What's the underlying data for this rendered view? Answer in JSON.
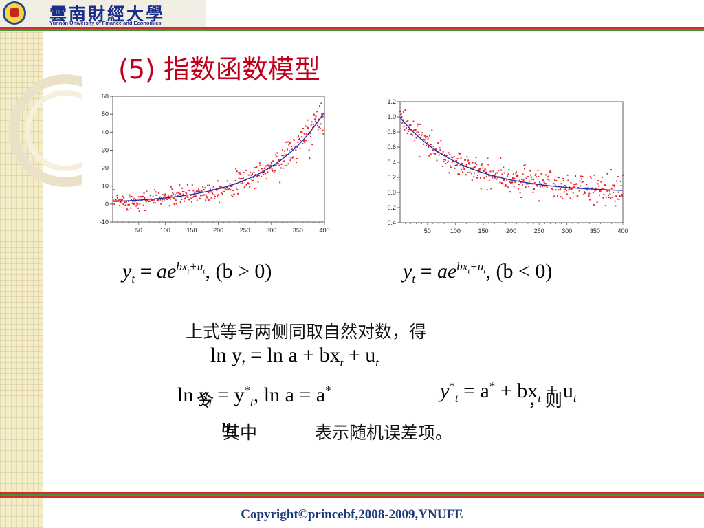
{
  "header": {
    "logo_cn": "雲南財經大學",
    "logo_en": "Yunnan University of Finance and Economics"
  },
  "slide": {
    "title": "(5) 指数函数模型",
    "eq_left": {
      "lhs": "y",
      "lhs_sub": "t",
      "rel": " = ",
      "base": "ae",
      "exp_pre": "bx",
      "exp_sub": "t",
      "exp_post": "+u",
      "exp_sub2": "t",
      "cond": ",  (b > 0)"
    },
    "eq_right": {
      "lhs": "y",
      "lhs_sub": "t",
      "rel": " = ",
      "base": "ae",
      "exp_pre": "bx",
      "exp_sub": "t",
      "exp_post": "+u",
      "exp_sub2": "t",
      "cond": ",  (b < 0)"
    },
    "text_line1": "上式等号两侧同取自然对数，得",
    "eq_ln": {
      "a": "ln y",
      "a_sub": "t",
      "b": " = ln a + bx",
      "b_sub": "t",
      "c": " + u",
      "c_sub": "t"
    },
    "text_let": "令",
    "eq_sub": {
      "a": "ln y",
      "a_sub": "t",
      "b": " = y",
      "b_sup": "*",
      "b_sub": "t",
      "c": ", ln a = a",
      "c_sup": "*"
    },
    "text_then": "，则",
    "eq_result": {
      "a": "y",
      "a_sup": "*",
      "a_sub": "t",
      "b": " = a",
      "b_sup": "*",
      "c": " + bx",
      "c_sub": "t",
      "d": " + u",
      "d_sub": "t"
    },
    "text_where": "其中",
    "text_u": "u",
    "text_u_sub": "t",
    "text_desc": "表示随机误差项。"
  },
  "footer": {
    "copyright": "Copyright©princebf,2008-2009,YNUFE"
  },
  "colors": {
    "title": "#c0001a",
    "points": "#e8202a",
    "curve": "#1a2fb0",
    "brand": "#1b2e8c"
  },
  "chart_data": [
    {
      "type": "scatter",
      "x_ticks": [
        50,
        100,
        150,
        200,
        250,
        300,
        350,
        400
      ],
      "y_ticks": [
        -10,
        0,
        10,
        20,
        30,
        40,
        50,
        60
      ],
      "xlim": [
        1,
        400
      ],
      "ylim": [
        -10,
        60
      ],
      "series": [
        {
          "kind": "points",
          "model": "y = 1.4 e^(0.009x) + noise",
          "n": 400
        },
        {
          "kind": "fitted-line",
          "a": 1.4,
          "b": 0.009
        }
      ]
    },
    {
      "type": "scatter",
      "x_ticks": [
        50,
        100,
        150,
        200,
        250,
        300,
        350,
        400
      ],
      "y_ticks": [
        -0.4,
        -0.2,
        0.0,
        0.2,
        0.4,
        0.6,
        0.8,
        1.0,
        1.2
      ],
      "xlim": [
        1,
        400
      ],
      "ylim": [
        -0.4,
        1.2
      ],
      "series": [
        {
          "kind": "points",
          "model": "y = e^(-0.009x) + noise",
          "n": 400
        },
        {
          "kind": "fitted-line",
          "a": 1.0,
          "b": -0.009
        }
      ]
    }
  ]
}
